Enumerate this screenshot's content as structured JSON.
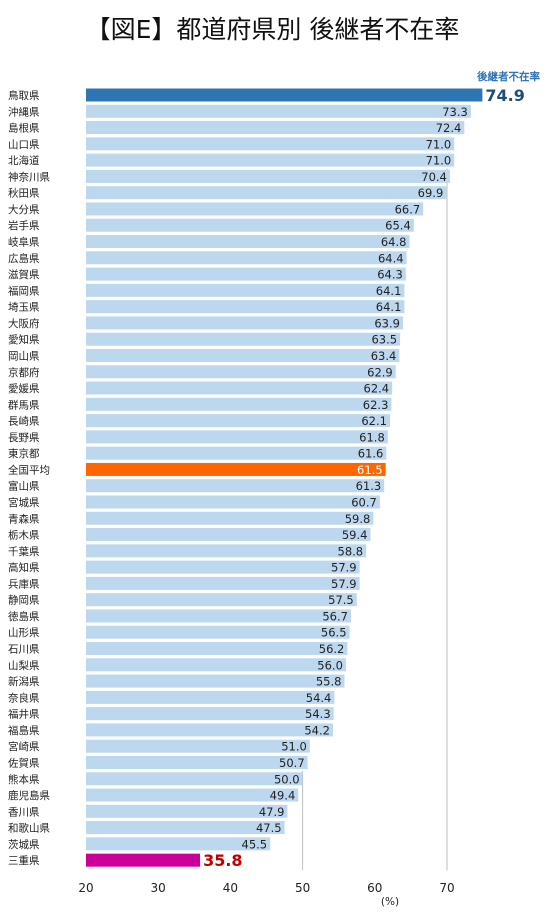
{
  "chart_data": {
    "type": "bar",
    "orientation": "horizontal",
    "title": "【図E】都道府県別 後継者不在率",
    "series_label": "後継者不在率",
    "xlabel": "(%)",
    "xlim": [
      20,
      80
    ],
    "xticks": [
      20,
      30,
      40,
      50,
      60,
      70
    ],
    "grid": false,
    "colors": {
      "default": "#bdd7ee",
      "top": "#2e75b6",
      "national": "#ff6600",
      "bottom": "#cc0099",
      "top_label": "#1f4e79",
      "bottom_label": "#c00000",
      "series_label": "#2e75b6"
    },
    "categories": [
      "鳥取県",
      "沖縄県",
      "島根県",
      "山口県",
      "北海道",
      "神奈川県",
      "秋田県",
      "大分県",
      "岩手県",
      "岐阜県",
      "広島県",
      "滋賀県",
      "福岡県",
      "埼玉県",
      "大阪府",
      "愛知県",
      "岡山県",
      "京都府",
      "愛媛県",
      "群馬県",
      "長崎県",
      "長野県",
      "東京都",
      "全国平均",
      "富山県",
      "宮城県",
      "青森県",
      "栃木県",
      "千葉県",
      "高知県",
      "兵庫県",
      "静岡県",
      "徳島県",
      "山形県",
      "石川県",
      "山梨県",
      "新潟県",
      "奈良県",
      "福井県",
      "福島県",
      "宮崎県",
      "佐賀県",
      "熊本県",
      "鹿児島県",
      "香川県",
      "和歌山県",
      "茨城県",
      "三重県"
    ],
    "values": [
      74.9,
      73.3,
      72.4,
      71.0,
      71.0,
      70.4,
      69.9,
      66.7,
      65.4,
      64.8,
      64.4,
      64.3,
      64.1,
      64.1,
      63.9,
      63.5,
      63.4,
      62.9,
      62.4,
      62.3,
      62.1,
      61.8,
      61.6,
      61.5,
      61.3,
      60.7,
      59.8,
      59.4,
      58.8,
      57.9,
      57.9,
      57.5,
      56.7,
      56.5,
      56.2,
      56.0,
      55.8,
      54.4,
      54.3,
      54.2,
      51.0,
      50.7,
      50.0,
      49.4,
      47.9,
      47.5,
      45.5,
      35.8
    ],
    "value_labels": [
      "74.9",
      "73.3",
      "72.4",
      "71.0",
      "71.0",
      "70.4",
      "69.9",
      "66.7",
      "65.4",
      "64.8",
      "64.4",
      "64.3",
      "64.1",
      "64.1",
      "63.9",
      "63.5",
      "63.4",
      "62.9",
      "62.4",
      "62.3",
      "62.1",
      "61.8",
      "61.6",
      "61.5",
      "61.3",
      "60.7",
      "59.8",
      "59.4",
      "58.8",
      "57.9",
      "57.9",
      "57.5",
      "56.7",
      "56.5",
      "56.2",
      "56.0",
      "55.8",
      "54.4",
      "54.3",
      "54.2",
      "51.0",
      "50.7",
      "50.0",
      "49.4",
      "47.9",
      "47.5",
      "45.5",
      "35.8"
    ],
    "highlight": {
      "top": "鳥取県",
      "national": "全国平均",
      "bottom": "三重県"
    }
  }
}
